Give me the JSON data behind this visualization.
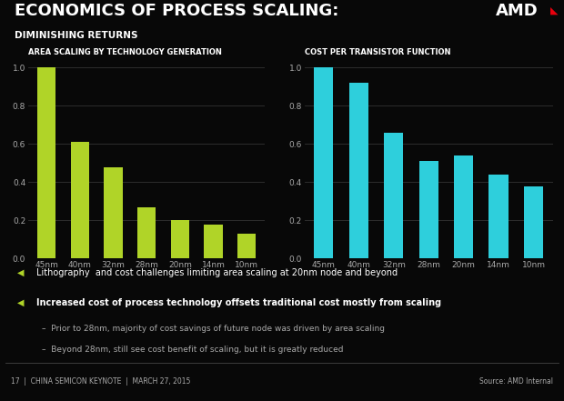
{
  "title_main": "ECONOMICS OF PROCESS SCALING:",
  "title_sub": "DIMINISHING RETURNS",
  "background_color": "#080808",
  "text_color": "#ffffff",
  "chart1_title": "AREA SCALING BY TECHNOLOGY GENERATION",
  "chart1_categories": [
    "45nm",
    "40nm",
    "32nm",
    "28nm",
    "20nm",
    "14nm",
    "10nm"
  ],
  "chart1_values": [
    1.0,
    0.61,
    0.48,
    0.27,
    0.2,
    0.18,
    0.13
  ],
  "chart1_bar_color": "#b0d428",
  "chart2_title": "COST PER TRANSISTOR FUNCTION",
  "chart2_categories": [
    "45nm",
    "40nm",
    "32nm",
    "28nm",
    "20nm",
    "14nm",
    "10nm"
  ],
  "chart2_values": [
    1.0,
    0.92,
    0.66,
    0.51,
    0.54,
    0.44,
    0.38
  ],
  "chart2_bar_color": "#2ecfdc",
  "bullet1": "Lithography  and cost challenges limiting area scaling at 20nm node and beyond",
  "bullet2": "Increased cost of process technology offsets traditional cost mostly from scaling",
  "sub_bullet1": "Prior to 28nm, majority of cost savings of future node was driven by area scaling",
  "sub_bullet2": "Beyond 28nm, still see cost benefit of scaling, but it is greatly reduced",
  "footer_left": "17  |  CHINA SEMICON KEYNOTE  |  MARCH 27, 2015",
  "footer_right": "Source: AMD Internal",
  "ylim": [
    0.0,
    1.05
  ],
  "yticks": [
    0.0,
    0.2,
    0.4,
    0.6,
    0.8,
    1.0
  ],
  "grid_color": "#333333",
  "tick_color": "#aaaaaa"
}
